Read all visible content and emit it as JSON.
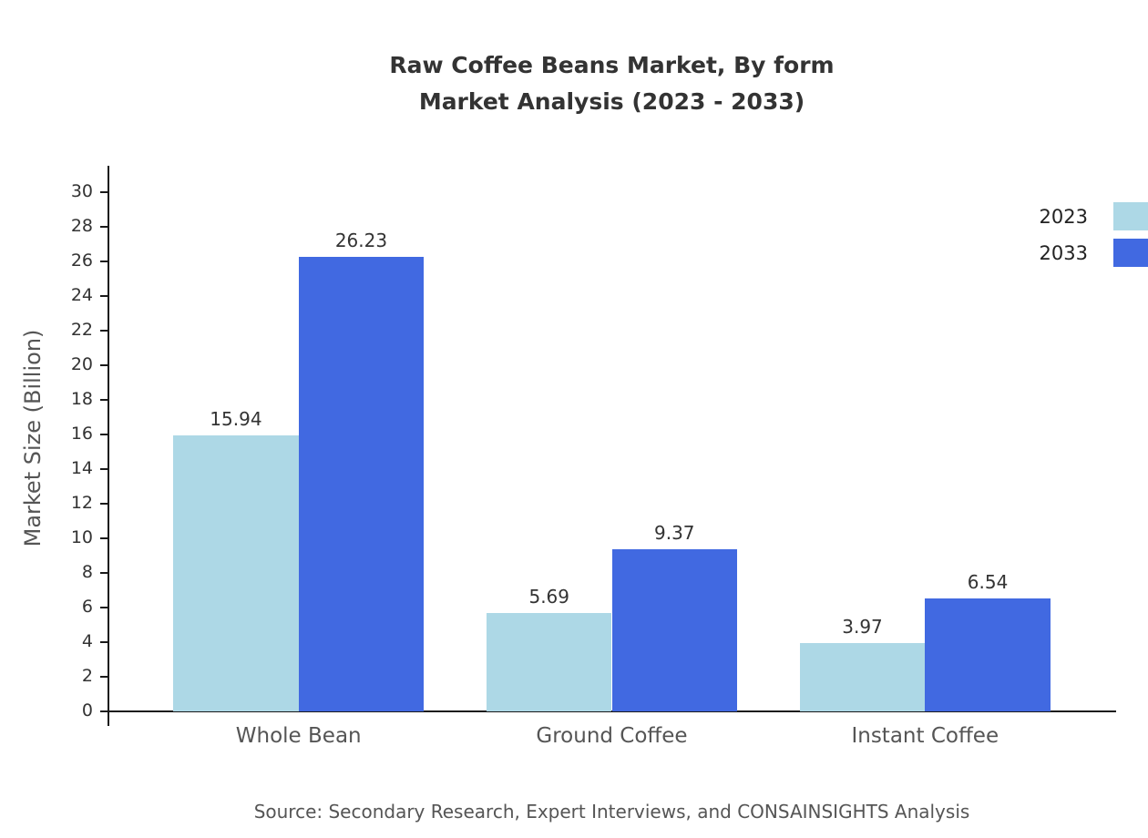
{
  "title": {
    "line1": "Raw Coffee Beans Market, By form",
    "line2": "Market Analysis (2023 - 2033)"
  },
  "source": "Source: Secondary Research, Expert Interviews, and CONSAINSIGHTS Analysis",
  "chart_data": {
    "type": "bar",
    "categories": [
      "Whole Bean",
      "Ground Coffee",
      "Instant Coffee"
    ],
    "series": [
      {
        "name": "2023",
        "color": "#ADD8E6",
        "values": [
          15.94,
          5.69,
          3.97
        ]
      },
      {
        "name": "2033",
        "color": "#4169E1",
        "values": [
          26.23,
          9.37,
          6.54
        ]
      }
    ],
    "title": "Raw Coffee Beans Market, By form Market Analysis (2023 - 2033)",
    "xlabel": "",
    "ylabel": "Market Size (Billion)",
    "ylim": [
      0,
      30
    ],
    "ytick_step": 2,
    "grid": false,
    "legend_position": "top-right",
    "value_labels": true
  }
}
